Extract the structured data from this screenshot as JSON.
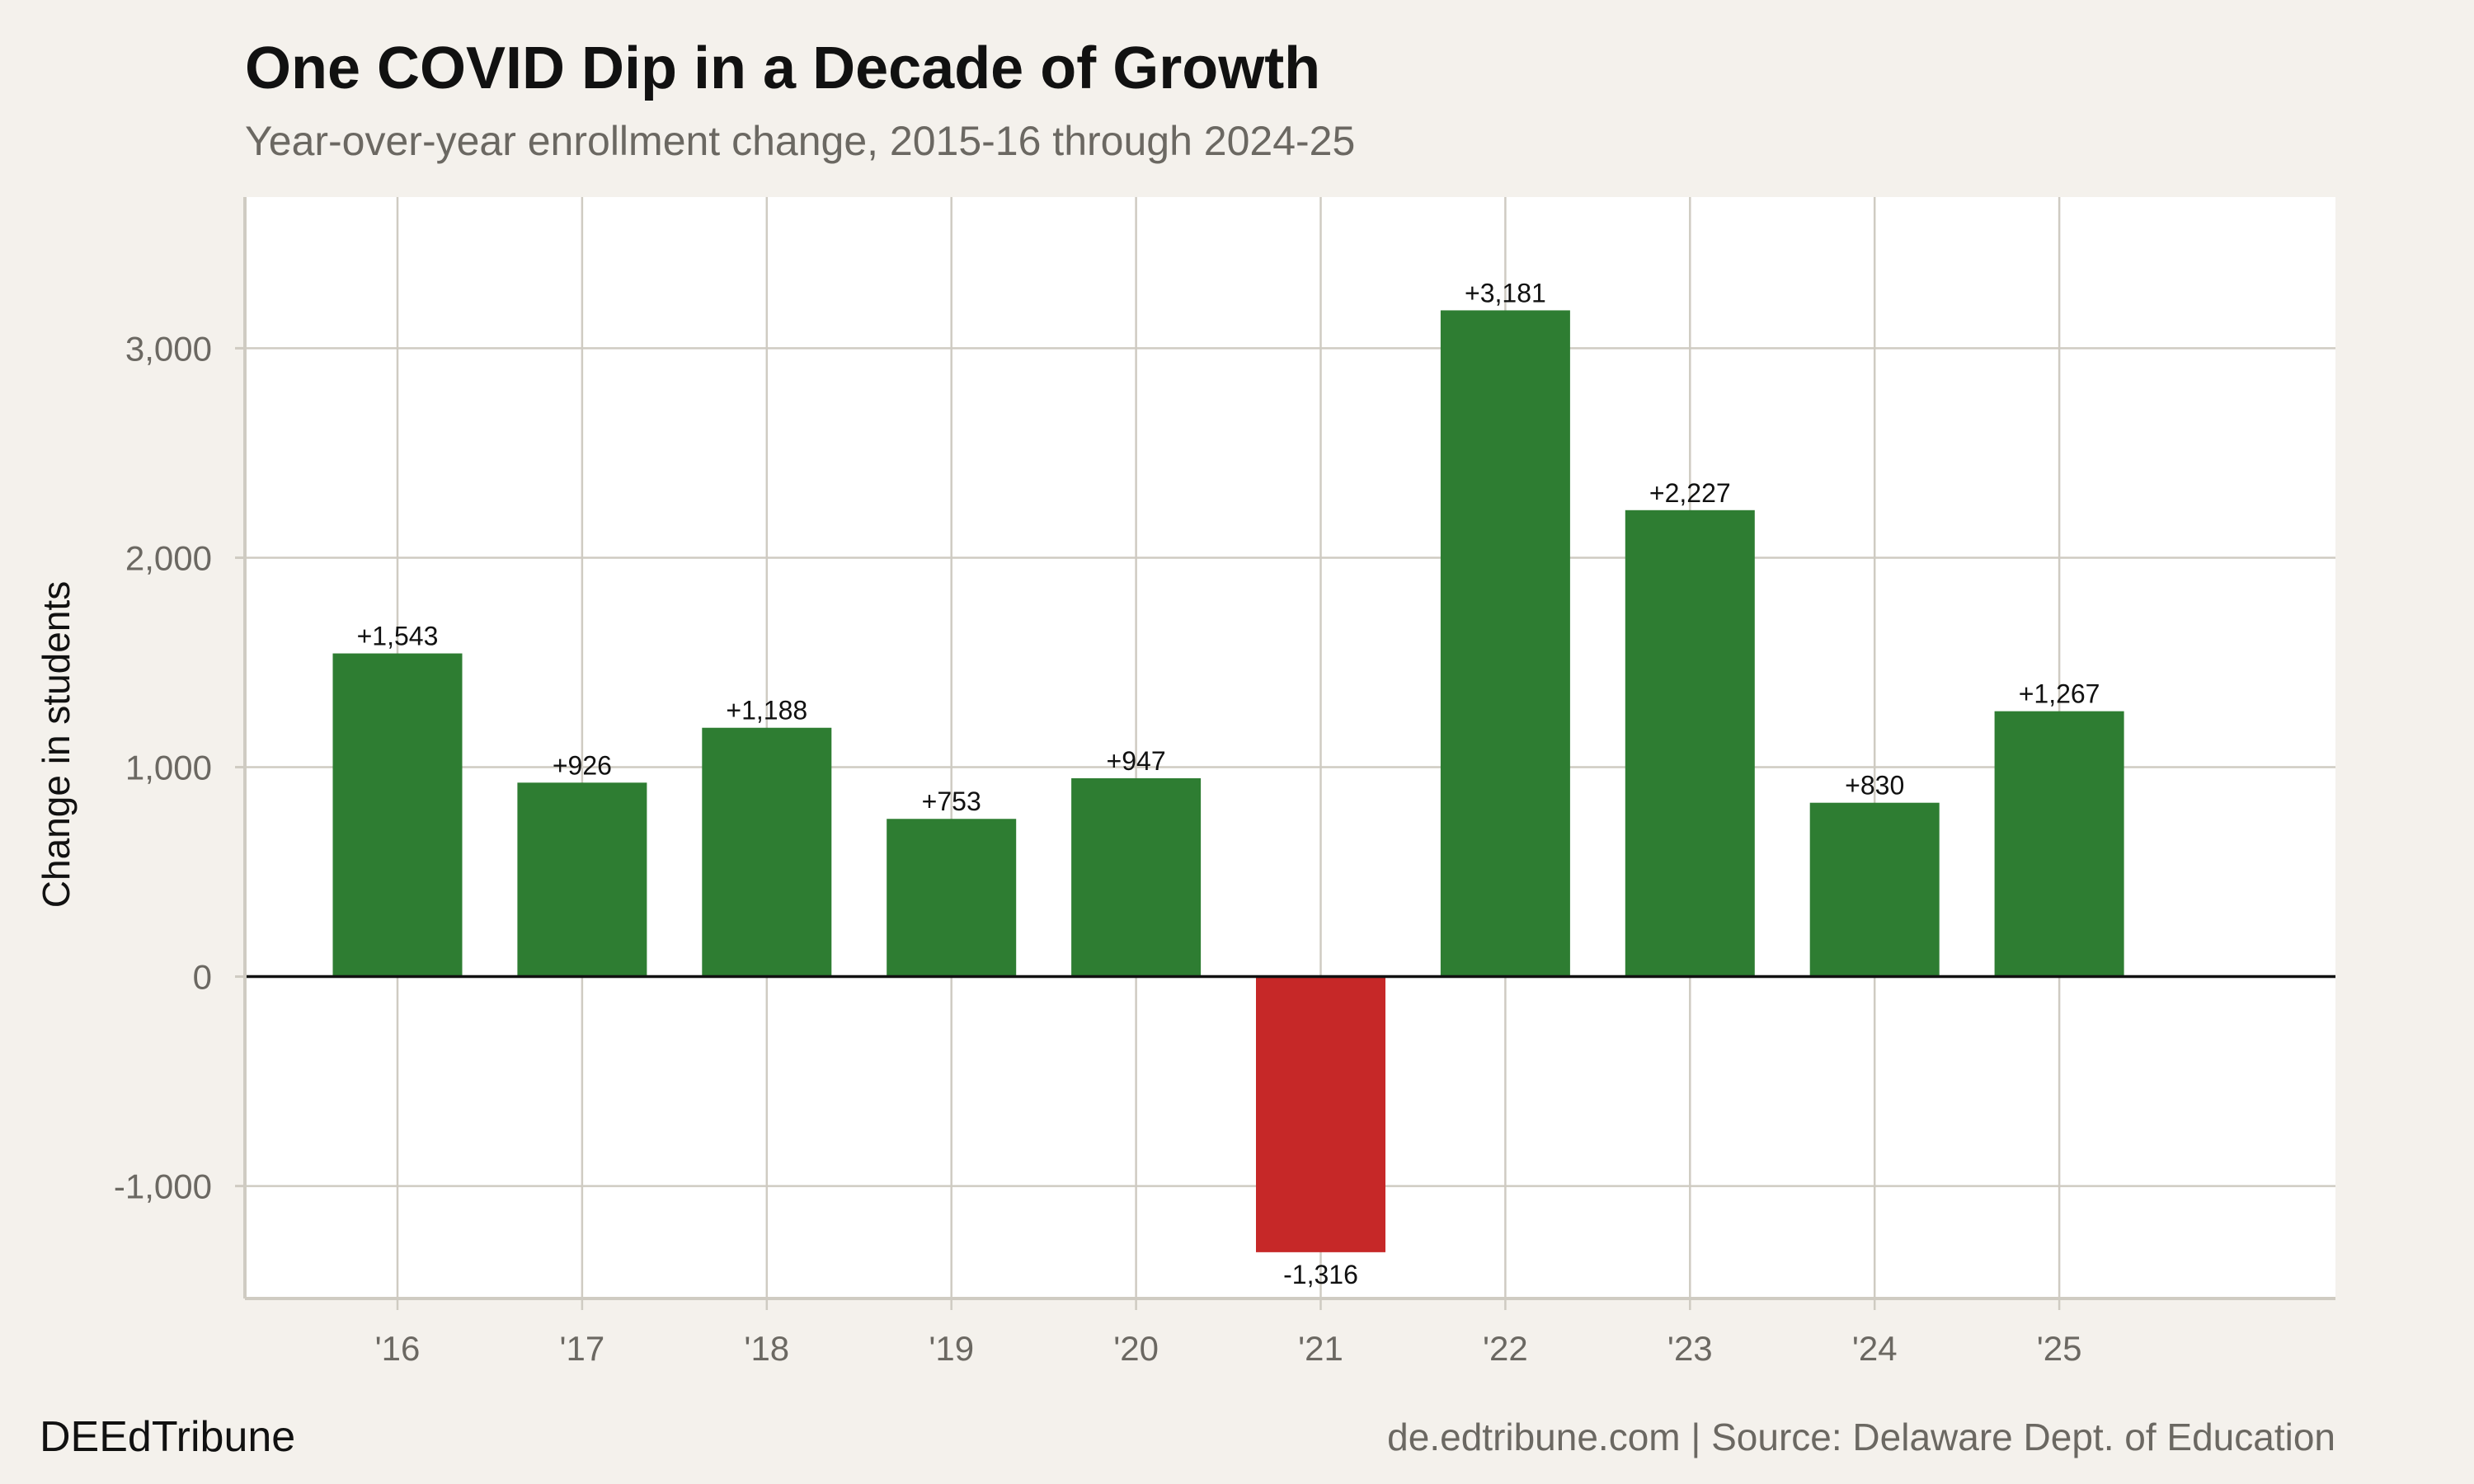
{
  "chart_data": {
    "type": "bar",
    "title": "One COVID Dip in a Decade of Growth",
    "subtitle": "Year-over-year enrollment change, 2015-16 through 2024-25",
    "xlabel": "",
    "ylabel": "Change in students",
    "categories": [
      "'16",
      "'17",
      "'18",
      "'19",
      "'20",
      "'21",
      "'22",
      "'23",
      "'24",
      "'25"
    ],
    "values": [
      1543,
      926,
      1188,
      753,
      947,
      -1316,
      3181,
      2227,
      830,
      1267
    ],
    "data_labels": [
      "+1,543",
      "+926",
      "+1,188",
      "+753",
      "+947",
      "-1,316",
      "+3,181",
      "+2,227",
      "+830",
      "+1,267"
    ],
    "ylim": [
      -1537,
      3722
    ],
    "yticks": [
      -1000,
      0,
      1000,
      2000,
      3000
    ],
    "ytick_labels": [
      "-1,000",
      "0",
      "1,000",
      "2,000",
      "3,000"
    ],
    "grid": true,
    "colors": {
      "positive": "#2e7d32",
      "negative": "#c62828",
      "grid": "#cfcbc2",
      "zero_line": "#111111",
      "background": "#f4f1ec",
      "panel": "#ffffff"
    }
  },
  "footer": {
    "brand": "DEEdTribune",
    "source": "de.edtribune.com | Source: Delaware Dept. of Education"
  }
}
